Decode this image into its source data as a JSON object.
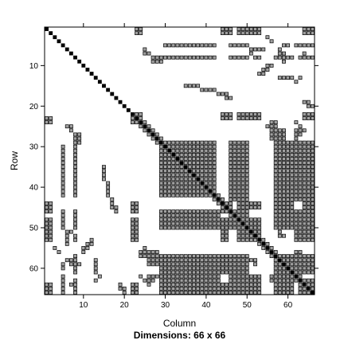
{
  "chart_data": {
    "type": "heatmap",
    "title": "",
    "subtitle": "Dimensions: 66 x 66",
    "xlabel": "Column",
    "ylabel": "Row",
    "nrow": 66,
    "ncol": 66,
    "xticks": [
      10,
      20,
      30,
      40,
      50,
      60
    ],
    "yticks": [
      10,
      20,
      30,
      40,
      50,
      60
    ],
    "xlim": [
      0.5,
      66.5
    ],
    "ylim": [
      66.5,
      0.5
    ],
    "colors": {
      "diagonal": "#000000",
      "nonzero": "#a0a0a0",
      "border": "#000000",
      "background": "#ffffff"
    },
    "symmetric": true,
    "diagonal_nonzero": true,
    "entries_note": "Row-wise nonzero column ranges of the upper triangle (row, [start, end]); the pattern is mirrored below the diagonal.",
    "upper_entries": [
      [
        1,
        [
          [
            23,
            24
          ],
          [
            44,
            46
          ],
          [
            48,
            53
          ],
          [
            64,
            66
          ]
        ]
      ],
      [
        2,
        [
          [
            23,
            24
          ],
          [
            44,
            46
          ],
          [
            48,
            53
          ],
          [
            64,
            66
          ]
        ]
      ],
      [
        3,
        [
          [
            55,
            55
          ]
        ]
      ],
      [
        4,
        [
          [
            56,
            56
          ]
        ]
      ],
      [
        5,
        [
          [
            30,
            42
          ],
          [
            46,
            50
          ],
          [
            59,
            60
          ],
          [
            62,
            66
          ]
        ]
      ],
      [
        6,
        [
          [
            25,
            25
          ],
          [
            51,
            54
          ],
          [
            58,
            58
          ]
        ]
      ],
      [
        7,
        [
          [
            25,
            26
          ],
          [
            51,
            51
          ],
          [
            58,
            59
          ],
          [
            64,
            64
          ]
        ]
      ],
      [
        8,
        [
          [
            27,
            42
          ],
          [
            46,
            50
          ],
          [
            52,
            53
          ],
          [
            57,
            61
          ],
          [
            63,
            66
          ]
        ]
      ],
      [
        9,
        [
          [
            27,
            29
          ],
          [
            59,
            59
          ]
        ]
      ],
      [
        10,
        [
          [
            55,
            56
          ]
        ]
      ],
      [
        11,
        [
          [
            54,
            55
          ]
        ]
      ],
      [
        12,
        [
          [
            53,
            54
          ]
        ]
      ],
      [
        13,
        [
          [
            58,
            61
          ],
          [
            63,
            63
          ]
        ]
      ],
      [
        14,
        [
          [
            62,
            62
          ]
        ]
      ],
      [
        15,
        [
          [
            35,
            38
          ]
        ]
      ],
      [
        16,
        [
          [
            39,
            42
          ]
        ]
      ],
      [
        17,
        [
          [
            43,
            45
          ]
        ]
      ],
      [
        18,
        [
          [
            45,
            46
          ]
        ]
      ],
      [
        19,
        [
          [
            64,
            65
          ]
        ]
      ],
      [
        20,
        [
          [
            65,
            66
          ]
        ]
      ],
      [
        22,
        [
          [
            23,
            24
          ],
          [
            44,
            46
          ],
          [
            48,
            53
          ],
          [
            64,
            66
          ]
        ]
      ],
      [
        23,
        [
          [
            24,
            24
          ],
          [
            44,
            46
          ],
          [
            48,
            53
          ],
          [
            64,
            66
          ]
        ]
      ],
      [
        24,
        [
          [
            25,
            25
          ],
          [
            56,
            57
          ],
          [
            62,
            62
          ]
        ]
      ],
      [
        25,
        [
          [
            26,
            26
          ],
          [
            55,
            57
          ],
          [
            63,
            63
          ]
        ]
      ],
      [
        26,
        [
          [
            27,
            27
          ],
          [
            56,
            59
          ],
          [
            62,
            64
          ]
        ]
      ],
      [
        27,
        [
          [
            28,
            28
          ],
          [
            56,
            59
          ],
          [
            62,
            63
          ]
        ]
      ],
      [
        28,
        [
          [
            29,
            29
          ],
          [
            56,
            59
          ],
          [
            62,
            62
          ]
        ]
      ],
      [
        29,
        [
          [
            30,
            42
          ],
          [
            46,
            50
          ],
          [
            57,
            61
          ],
          [
            62,
            66
          ]
        ]
      ],
      [
        30,
        [
          [
            31,
            42
          ],
          [
            46,
            50
          ],
          [
            57,
            61
          ],
          [
            62,
            66
          ]
        ]
      ],
      [
        31,
        [
          [
            32,
            42
          ],
          [
            46,
            50
          ],
          [
            57,
            61
          ],
          [
            62,
            66
          ]
        ]
      ],
      [
        32,
        [
          [
            33,
            42
          ],
          [
            46,
            50
          ],
          [
            57,
            61
          ],
          [
            62,
            66
          ]
        ]
      ],
      [
        33,
        [
          [
            34,
            42
          ],
          [
            46,
            50
          ],
          [
            57,
            61
          ],
          [
            62,
            66
          ]
        ]
      ],
      [
        34,
        [
          [
            35,
            42
          ],
          [
            46,
            50
          ],
          [
            57,
            61
          ],
          [
            62,
            66
          ]
        ]
      ],
      [
        35,
        [
          [
            36,
            42
          ],
          [
            46,
            50
          ],
          [
            57,
            61
          ],
          [
            62,
            66
          ]
        ]
      ],
      [
        36,
        [
          [
            37,
            42
          ],
          [
            46,
            50
          ],
          [
            57,
            61
          ],
          [
            62,
            66
          ]
        ]
      ],
      [
        37,
        [
          [
            38,
            42
          ],
          [
            46,
            50
          ],
          [
            57,
            61
          ],
          [
            62,
            66
          ]
        ]
      ],
      [
        38,
        [
          [
            39,
            42
          ],
          [
            46,
            50
          ],
          [
            57,
            61
          ],
          [
            62,
            66
          ]
        ]
      ],
      [
        39,
        [
          [
            40,
            42
          ],
          [
            46,
            50
          ],
          [
            57,
            61
          ],
          [
            62,
            66
          ]
        ]
      ],
      [
        40,
        [
          [
            41,
            42
          ],
          [
            46,
            50
          ],
          [
            57,
            61
          ],
          [
            62,
            66
          ]
        ]
      ],
      [
        41,
        [
          [
            42,
            42
          ],
          [
            46,
            50
          ],
          [
            57,
            61
          ],
          [
            62,
            66
          ]
        ]
      ],
      [
        42,
        [
          [
            43,
            43
          ],
          [
            46,
            50
          ],
          [
            57,
            61
          ],
          [
            62,
            66
          ]
        ]
      ],
      [
        43,
        [
          [
            44,
            44
          ],
          [
            46,
            50
          ],
          [
            57,
            61
          ],
          [
            62,
            66
          ]
        ]
      ],
      [
        44,
        [
          [
            45,
            46
          ],
          [
            48,
            53
          ],
          [
            57,
            61
          ],
          [
            64,
            66
          ]
        ]
      ],
      [
        45,
        [
          [
            46,
            46
          ],
          [
            48,
            53
          ],
          [
            57,
            61
          ],
          [
            64,
            66
          ]
        ]
      ],
      [
        46,
        [
          [
            47,
            50
          ],
          [
            57,
            61
          ],
          [
            62,
            66
          ]
        ]
      ],
      [
        47,
        [
          [
            48,
            50
          ],
          [
            57,
            61
          ],
          [
            62,
            66
          ]
        ]
      ],
      [
        48,
        [
          [
            49,
            53
          ],
          [
            57,
            61
          ],
          [
            62,
            66
          ]
        ]
      ],
      [
        49,
        [
          [
            50,
            53
          ],
          [
            57,
            61
          ],
          [
            62,
            66
          ]
        ]
      ],
      [
        50,
        [
          [
            51,
            53
          ],
          [
            57,
            61
          ],
          [
            62,
            66
          ]
        ]
      ],
      [
        51,
        [
          [
            52,
            53
          ],
          [
            58,
            58
          ],
          [
            62,
            66
          ]
        ]
      ],
      [
        52,
        [
          [
            53,
            53
          ],
          [
            58,
            59
          ],
          [
            62,
            66
          ]
        ]
      ],
      [
        53,
        [
          [
            54,
            54
          ],
          [
            62,
            66
          ]
        ]
      ],
      [
        54,
        [
          [
            55,
            55
          ]
        ]
      ],
      [
        55,
        [
          [
            56,
            56
          ]
        ]
      ],
      [
        56,
        [
          [
            57,
            57
          ],
          [
            62,
            63
          ]
        ]
      ],
      [
        57,
        [
          [
            58,
            61
          ],
          [
            62,
            66
          ]
        ]
      ],
      [
        58,
        [
          [
            59,
            61
          ],
          [
            62,
            66
          ]
        ]
      ],
      [
        59,
        [
          [
            60,
            61
          ],
          [
            62,
            66
          ]
        ]
      ],
      [
        60,
        [
          [
            61,
            61
          ],
          [
            62,
            66
          ]
        ]
      ],
      [
        61,
        [
          [
            62,
            66
          ]
        ]
      ],
      [
        62,
        [
          [
            63,
            63
          ]
        ]
      ],
      [
        63,
        [
          [
            64,
            66
          ]
        ]
      ],
      [
        64,
        [
          [
            65,
            66
          ]
        ]
      ],
      [
        65,
        [
          [
            66,
            66
          ]
        ]
      ]
    ]
  }
}
